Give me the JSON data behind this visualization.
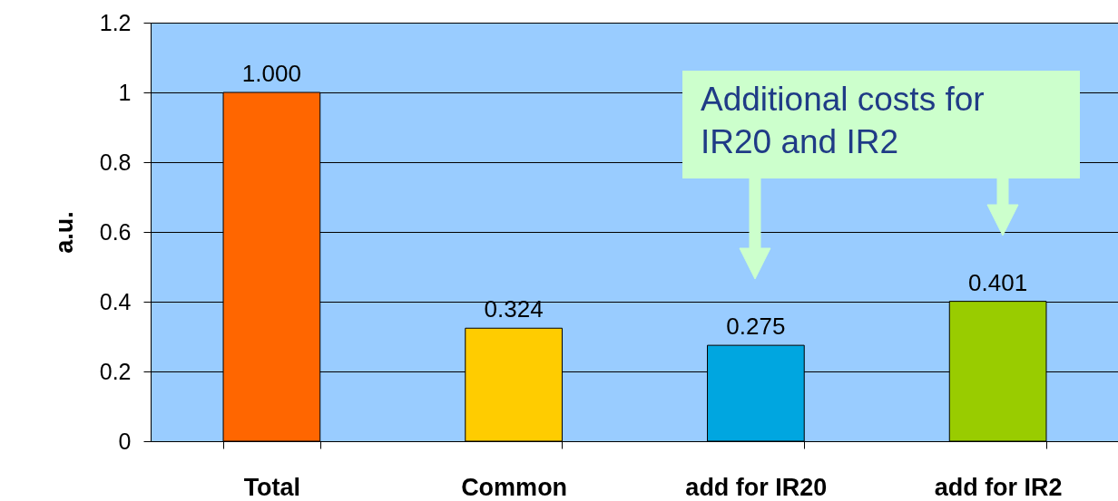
{
  "chart_data": {
    "type": "bar",
    "ylabel": "a.u.",
    "categories": [
      "Total",
      "Common",
      "add for IR20",
      "add for IR2"
    ],
    "values": [
      1.0,
      0.324,
      0.275,
      0.401
    ],
    "colors": [
      "#ff6600",
      "#ffcc00",
      "#00a6e0",
      "#99cc00"
    ],
    "value_labels": [
      "1.000",
      "0.324",
      "0.275",
      "0.401"
    ],
    "ylim": [
      0,
      1.2
    ],
    "yticks": [
      0,
      0.2,
      0.4,
      0.6,
      0.8,
      1,
      1.2
    ],
    "grid": "y",
    "annotations": [
      "Additional costs for IR20 and IR2"
    ]
  }
}
